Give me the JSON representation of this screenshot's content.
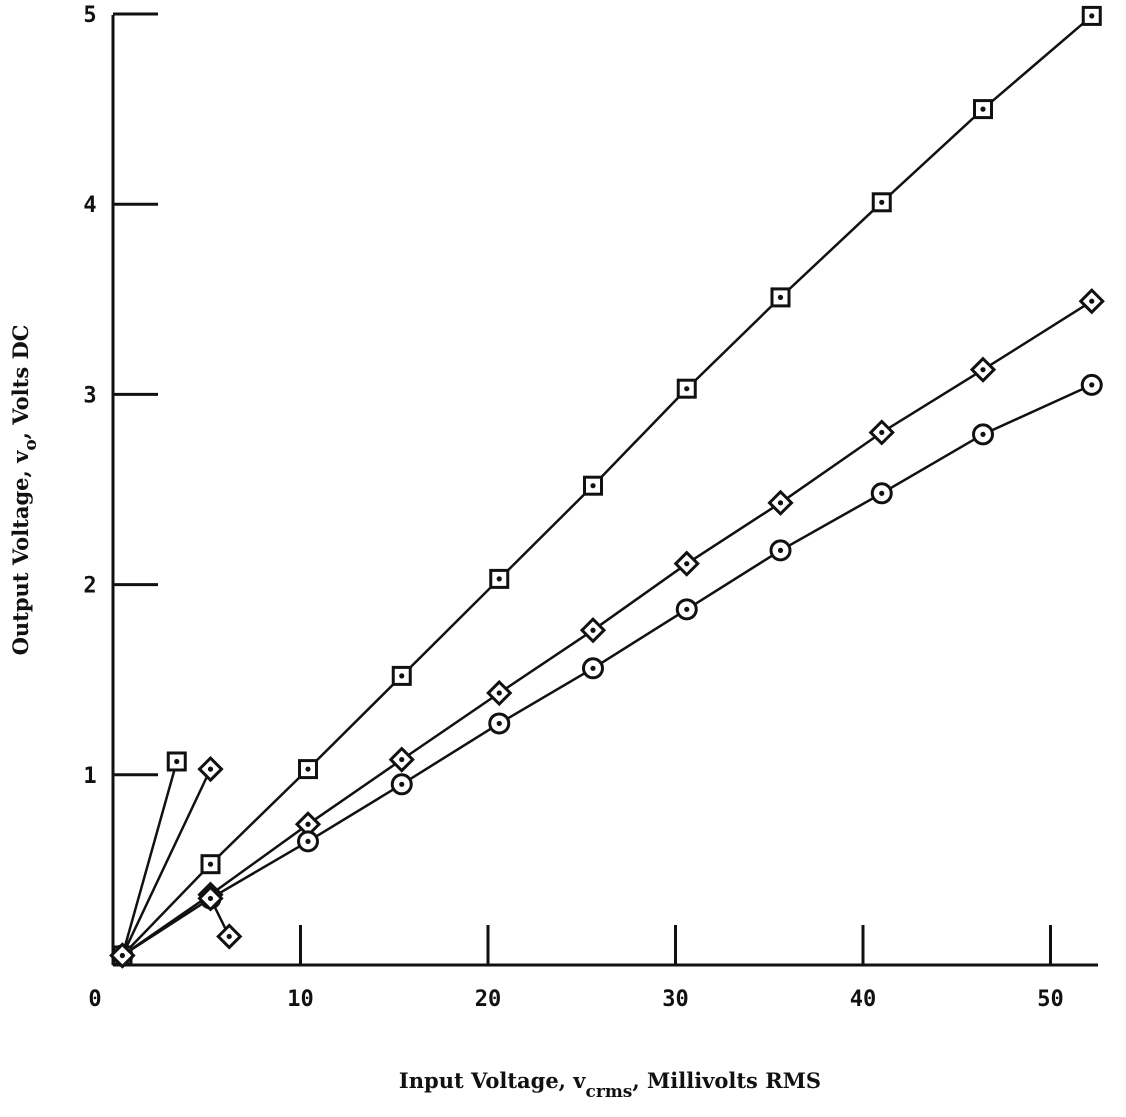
{
  "chart_data": {
    "type": "line",
    "title": "",
    "xlabel": {
      "main": "Input Voltage, v",
      "subscript": "crms",
      "rest": ", Millivolts RMS"
    },
    "ylabel": {
      "main": "Output Voltage, v",
      "subscript": "o",
      "rest": ", Volts DC"
    },
    "xlim": [
      0,
      55
    ],
    "ylim": [
      0,
      5
    ],
    "xticks": [
      0,
      10,
      20,
      30,
      40,
      50
    ],
    "yticks": [
      1,
      2,
      3,
      4,
      5
    ],
    "grid": false,
    "series": [
      {
        "marker": "square",
        "x": [
          0.5,
          5.2,
          10.4,
          15.4,
          20.6,
          25.6,
          30.6,
          35.6,
          41.0,
          46.4,
          52.2
        ],
        "y": [
          0.05,
          0.53,
          1.03,
          1.52,
          2.03,
          2.52,
          3.03,
          3.51,
          4.01,
          4.5,
          4.99
        ]
      },
      {
        "marker": "diamond",
        "x": [
          0.5,
          5.2,
          10.4,
          15.4,
          20.6,
          25.6,
          30.6,
          35.6,
          41.0,
          46.4,
          52.2
        ],
        "y": [
          0.05,
          0.37,
          0.74,
          1.08,
          1.43,
          1.76,
          2.11,
          2.43,
          2.8,
          3.13,
          3.49
        ]
      },
      {
        "marker": "circle",
        "x": [
          0.5,
          5.2,
          10.4,
          15.4,
          20.6,
          25.6,
          30.6,
          35.6,
          41.0,
          46.4,
          52.2
        ],
        "y": [
          0.05,
          0.35,
          0.65,
          0.95,
          1.27,
          1.56,
          1.87,
          2.18,
          2.48,
          2.79,
          3.05
        ]
      },
      {
        "marker": "square",
        "x": [
          0.5,
          3.4
        ],
        "y": [
          0.05,
          1.07
        ]
      },
      {
        "marker": "diamond",
        "x": [
          0.5,
          5.2
        ],
        "y": [
          0.05,
          1.03
        ]
      },
      {
        "marker": "diamond",
        "x": [
          5.2,
          6.2
        ],
        "y": [
          0.35,
          0.15
        ]
      }
    ]
  }
}
